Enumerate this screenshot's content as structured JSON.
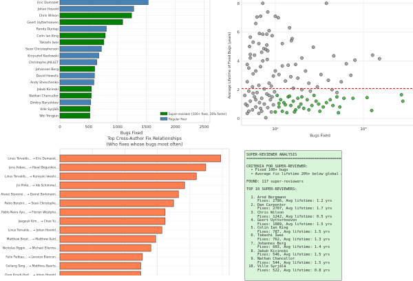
{
  "chart_data": [
    {
      "type": "bar",
      "orientation": "horizontal",
      "xlabel": "Bugs Fixed",
      "xlim": [
        0,
        2600
      ],
      "xticks": [
        0,
        500,
        1000,
        1500,
        2000,
        2500
      ],
      "grid": true,
      "categories": [
        "Eric Dumazet",
        "Johan Hovold",
        "Chris Wilson",
        "Geert Uytterhoeven",
        "Randy Dunlap",
        "Colin Ian King",
        "Takashi Iwai",
        "Sean Christopherson",
        "Krzysztof Kozlowski",
        "Christophe JAILLET",
        "Johannes Berg",
        "David Howells",
        "Andy Shevchenko",
        "Jakub Kicinski",
        "Nathan Chancellor",
        "Dmitry Baryshkov",
        "Ville Syrjälä",
        "Wei Yongjun"
      ],
      "values": [
        1530,
        1280,
        1242,
        1089,
        805,
        787,
        762,
        720,
        675,
        640,
        603,
        600,
        590,
        546,
        544,
        535,
        522,
        520
      ],
      "super": [
        false,
        false,
        true,
        true,
        false,
        true,
        true,
        false,
        false,
        false,
        true,
        false,
        false,
        true,
        true,
        false,
        true,
        true
      ],
      "legend": {
        "position": "bottom-right",
        "entries": [
          {
            "label": "Super-reviewer (100+ fixes, 20% faster)",
            "color": "#008000"
          },
          {
            "label": "Regular fixer",
            "color": "#4682b4"
          }
        ]
      }
    },
    {
      "type": "scatter",
      "xlabel": "Bugs Fixed",
      "ylabel": "Average Lifetime of Fixed Bugs (years)",
      "xscale": "log",
      "xlim": [
        42,
        3200
      ],
      "ylim": [
        -0.4,
        8.3
      ],
      "yticks": [
        0,
        2,
        4,
        6,
        8
      ],
      "xticks": [
        "10²",
        "10³"
      ],
      "grid": true,
      "reference_line": {
        "y": 2.08,
        "color": "#d62728",
        "style": "dashed"
      },
      "gray": [
        [
          72,
          8.0
        ],
        [
          380,
          8.0
        ],
        [
          82,
          7.4
        ],
        [
          62,
          7.05
        ],
        [
          68,
          7.1
        ],
        [
          100,
          7.1
        ],
        [
          108,
          7.0
        ],
        [
          60,
          6.6
        ],
        [
          145,
          6.3
        ],
        [
          85,
          6.1
        ],
        [
          66,
          5.9
        ],
        [
          72,
          5.85
        ],
        [
          80,
          5.85
        ],
        [
          92,
          5.75
        ],
        [
          52,
          5.65
        ],
        [
          155,
          5.55
        ],
        [
          152,
          5.4
        ],
        [
          56,
          5.3
        ],
        [
          120,
          5.2
        ],
        [
          65,
          5.2
        ],
        [
          80,
          5.1
        ],
        [
          51,
          5.0
        ],
        [
          270,
          4.95
        ],
        [
          74,
          4.85
        ],
        [
          78,
          4.8
        ],
        [
          82,
          4.7
        ],
        [
          70,
          4.6
        ],
        [
          58,
          4.4
        ],
        [
          52,
          4.45
        ],
        [
          460,
          4.35
        ],
        [
          1270,
          4.4
        ],
        [
          1520,
          4.15
        ],
        [
          800,
          4.05
        ],
        [
          200,
          4.2
        ],
        [
          52,
          4.2
        ],
        [
          81,
          4.1
        ],
        [
          72,
          4.0
        ],
        [
          640,
          3.8
        ],
        [
          48,
          3.75
        ],
        [
          170,
          3.75
        ],
        [
          140,
          3.7
        ],
        [
          120,
          3.65
        ],
        [
          68,
          3.6
        ],
        [
          50,
          3.5
        ],
        [
          100,
          3.3
        ],
        [
          220,
          3.3
        ],
        [
          60,
          3.3
        ],
        [
          56,
          3.1
        ],
        [
          110,
          3.05
        ],
        [
          330,
          3.05
        ],
        [
          720,
          3.0
        ],
        [
          95,
          2.95
        ],
        [
          150,
          2.9
        ],
        [
          180,
          2.8
        ],
        [
          400,
          2.65
        ],
        [
          48,
          2.55
        ],
        [
          560,
          2.55
        ],
        [
          240,
          2.45
        ],
        [
          85,
          2.45
        ],
        [
          130,
          2.6
        ],
        [
          65,
          2.3
        ],
        [
          55,
          2.2
        ],
        [
          90,
          2.25
        ],
        [
          300,
          2.2
        ],
        [
          160,
          2.1
        ],
        [
          75,
          2.05
        ],
        [
          50,
          1.9
        ],
        [
          62,
          1.8
        ],
        [
          80,
          1.7
        ],
        [
          98,
          1.85
        ],
        [
          45,
          1.6
        ],
        [
          58,
          1.5
        ],
        [
          70,
          1.4
        ],
        [
          88,
          1.3
        ],
        [
          52,
          1.2
        ],
        [
          66,
          1.1
        ],
        [
          75,
          1.0
        ],
        [
          95,
          0.95
        ],
        [
          48,
          0.9
        ],
        [
          60,
          0.8
        ],
        [
          82,
          0.75
        ],
        [
          55,
          0.6
        ],
        [
          70,
          0.5
        ],
        [
          90,
          0.45
        ],
        [
          48,
          0.35
        ],
        [
          65,
          0.35
        ],
        [
          78,
          0.05
        ],
        [
          50,
          0.5
        ],
        [
          60,
          1.3
        ],
        [
          85,
          1.6
        ],
        [
          46,
          1.0
        ],
        [
          56,
          1.75
        ],
        [
          68,
          0.7
        ],
        [
          92,
          1.5
        ],
        [
          500,
          1.8
        ],
        [
          250,
          1.9
        ],
        [
          200,
          2.0
        ],
        [
          440,
          2.0
        ]
      ],
      "green": [
        [
          105,
          1.6
        ],
        [
          115,
          1.3
        ],
        [
          125,
          1.1
        ],
        [
          110,
          0.8
        ],
        [
          120,
          0.5
        ],
        [
          135,
          0.4
        ],
        [
          140,
          1.5
        ],
        [
          150,
          0.9
        ],
        [
          160,
          1.2
        ],
        [
          170,
          0.6
        ],
        [
          180,
          1.4
        ],
        [
          195,
          1.0
        ],
        [
          210,
          0.7
        ],
        [
          230,
          1.3
        ],
        [
          260,
          0.9
        ],
        [
          290,
          1.2
        ],
        [
          320,
          0.5
        ],
        [
          350,
          0.8
        ],
        [
          380,
          1.1
        ],
        [
          420,
          1.3
        ],
        [
          450,
          0.9
        ],
        [
          500,
          1.5
        ],
        [
          540,
          0.8
        ],
        [
          520,
          0.4
        ],
        [
          600,
          1.4
        ],
        [
          760,
          1.4
        ],
        [
          1100,
          1.45
        ],
        [
          1240,
          0.55
        ],
        [
          2700,
          1.65
        ],
        [
          2800,
          1.2
        ],
        [
          130,
          0.95
        ],
        [
          145,
          1.55
        ],
        [
          165,
          0.45
        ],
        [
          200,
          1.5
        ],
        [
          240,
          0.6
        ],
        [
          310,
          1.0
        ],
        [
          110,
          1.05
        ],
        [
          100,
          0.45
        ],
        [
          185,
          0.8
        ],
        [
          275,
          1.6
        ]
      ]
    },
    {
      "type": "bar",
      "orientation": "horizontal",
      "title": "Top Cross-Author Fix Relationships",
      "subtitle": "(Who fixes whose bugs most often)",
      "color": "#ff7f50",
      "categories": [
        "Linus Torvalds... → Eric Dumazet...",
        "Jens Axboe... → Pavel Begunkov...",
        "Linus Torvalds... → Kuniyuki Iwashi...",
        "Jiri Pirko... → Ido Schimmel...",
        "Alexei Starovoi... → Daniel Borkmann...",
        "Paolo Bonzini... → Sean Christophe...",
        "Pablo Neira Ayu... → Florian Westpha...",
        "Jaegeuk Kim... → Chao Yu...",
        "Linus Torvalds... → Johan Hovold...",
        "Matthew Brost... → Matthew Auld...",
        "Nicholas Piggin... → Michael Ellerma...",
        "Felix Fietkau... → Lorenzo Biancon...",
        "Geliang Tang... → Matthieu Baerts...",
        "Greg Kroah-Hart... → Johan Hovold..."
      ],
      "values": [
        4.95,
        4.49,
        4.2,
        3.84,
        3.65,
        3.5,
        3.24,
        3.24,
        3.14,
        2.95,
        2.8,
        2.54,
        2.49,
        2.49
      ],
      "xlim": [
        0,
        5.2
      ]
    }
  ],
  "summary": {
    "text": "SUPER-REVIEWER ANALYSIS\n============================================\n\nCRITERIA FOR SUPER-REVIEWER:\n  • Fixed 100+ bugs\n  • Average fix lifetime 20%+ below global average\n\nFOUND: 117 super-reviewers\n\nTOP 10 SUPER-REVIEWERS:\n\n  1. Arnd Bergmann\n     Fixes: 2786, Avg lifetime: 1.2 yrs\n  2. Dan Carpenter\n     Fixes: 2707, Avg lifetime: 1.7 yrs\n  3. Chris Wilson\n     Fixes: 1242, Avg lifetime: 0.5 yrs\n  4. Geert Uytterhoeven\n     Fixes: 1089, Avg lifetime: 1.5 yrs\n  5. Colin Ian King\n     Fixes: 787, Avg lifetime: 1.5 yrs\n  6. Takashi Iwai\n     Fixes: 762, Avg lifetime: 1.3 yrs\n  7. Johannes Berg\n     Fixes: 603, Avg lifetime: 1.4 yrs\n  8. Jakub Kicinski\n     Fixes: 546, Avg lifetime: 1.5 yrs\n  9. Nathan Chancellor\n     Fixes: 544, Avg lifetime: 1.5 yrs\n 10. Ville Syrjälä\n     Fixes: 522, Avg lifetime: 0.8 yrs"
  }
}
